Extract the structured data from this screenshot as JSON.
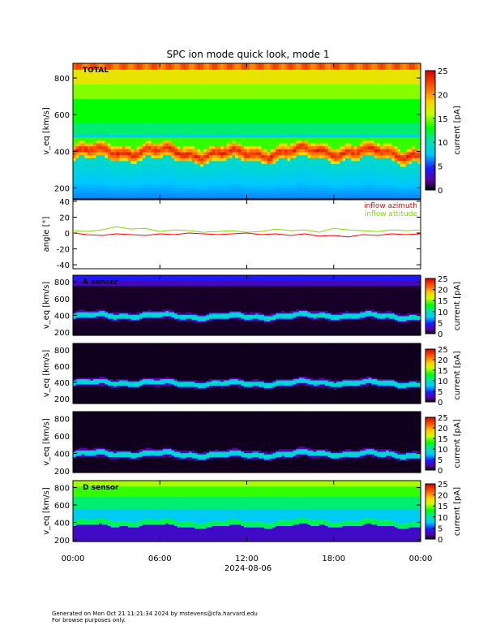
{
  "title": "SPC ion mode quick look, mode 1",
  "footer": {
    "line1": "Generated on Mon Oct 21 11:21:34 2024 by mstevens@cfa.harvard.edu",
    "line2": "For browse purposes only."
  },
  "x_axis": {
    "ticks": [
      "00:00",
      "06:00",
      "12:00",
      "18:00",
      "00:00"
    ],
    "tick_hours": [
      0,
      6,
      12,
      18,
      24
    ],
    "date_label": "2024-08-06"
  },
  "colorbar": {
    "label": "current [pA]",
    "ticks": [
      0,
      5,
      10,
      15,
      20,
      25
    ],
    "range": [
      0,
      25
    ]
  },
  "colors": {
    "spectrogram_scale": [
      "#000000",
      "#5a00a0",
      "#1a1aff",
      "#00c8ff",
      "#00e6a0",
      "#00ff00",
      "#c8ff00",
      "#ffd000",
      "#ff6000",
      "#d40000"
    ],
    "azimuth": "#ff0000",
    "attitude": "#7ee000"
  },
  "chart_data": [
    {
      "type": "heatmap",
      "panel": "total",
      "label": "TOTAL",
      "ylabel": "v_eq [km/s]",
      "ylim": [
        140,
        880
      ],
      "yticks": [
        200,
        400,
        600,
        800
      ],
      "x_range_hours": [
        0,
        24
      ],
      "description_values": {
        "peak_speed_kms": 400,
        "peak_current_pA": 22
      }
    },
    {
      "type": "line",
      "panel": "angle",
      "ylabel": "angle [°]",
      "ylim": [
        -45,
        42
      ],
      "yticks": [
        -40,
        -20,
        0,
        20,
        40
      ],
      "series": [
        {
          "name": "inflow azimuth",
          "color": "#ff0000",
          "x": [
            0,
            1,
            2,
            3,
            4,
            5,
            6,
            7,
            8,
            9,
            10,
            11,
            12,
            13,
            14,
            15,
            16,
            17,
            18,
            19,
            20,
            21,
            22,
            23,
            24
          ],
          "values": [
            0,
            -2,
            -3,
            -1,
            -2,
            -3,
            -1,
            -2,
            0,
            -1,
            -2,
            -1,
            0,
            -2,
            -1,
            -3,
            -1,
            -4,
            -3,
            -5,
            -2,
            -3,
            -1,
            -2,
            -1
          ]
        },
        {
          "name": "inflow attitude",
          "color": "#7ee000",
          "x": [
            0,
            1,
            2,
            3,
            4,
            5,
            6,
            7,
            8,
            9,
            10,
            11,
            12,
            13,
            14,
            15,
            16,
            17,
            18,
            19,
            20,
            21,
            22,
            23,
            24
          ],
          "values": [
            3,
            2,
            4,
            8,
            5,
            6,
            2,
            4,
            3,
            1,
            2,
            3,
            1,
            2,
            5,
            3,
            4,
            1,
            6,
            4,
            3,
            2,
            4,
            3,
            4
          ]
        }
      ]
    },
    {
      "type": "heatmap",
      "panel": "a-sensor",
      "label": "A sensor",
      "ylabel": "v_eq [km/s]",
      "ylim": [
        160,
        880
      ],
      "yticks": [
        200,
        400,
        600,
        800
      ]
    },
    {
      "type": "heatmap",
      "panel": "b-sensor",
      "label": "",
      "ylabel": "v_eq [km/s]",
      "ylim": [
        140,
        880
      ],
      "yticks": [
        200,
        400,
        600,
        800
      ]
    },
    {
      "type": "heatmap",
      "panel": "c-sensor",
      "label": "",
      "ylabel": "v_eq [km/s]",
      "ylim": [
        180,
        880
      ],
      "yticks": [
        200,
        400,
        600,
        800
      ]
    },
    {
      "type": "heatmap",
      "panel": "d-sensor",
      "label": "D sensor",
      "ylabel": "v_eq [km/s]",
      "ylim": [
        180,
        880
      ],
      "yticks": [
        200,
        400,
        600,
        800
      ]
    }
  ]
}
